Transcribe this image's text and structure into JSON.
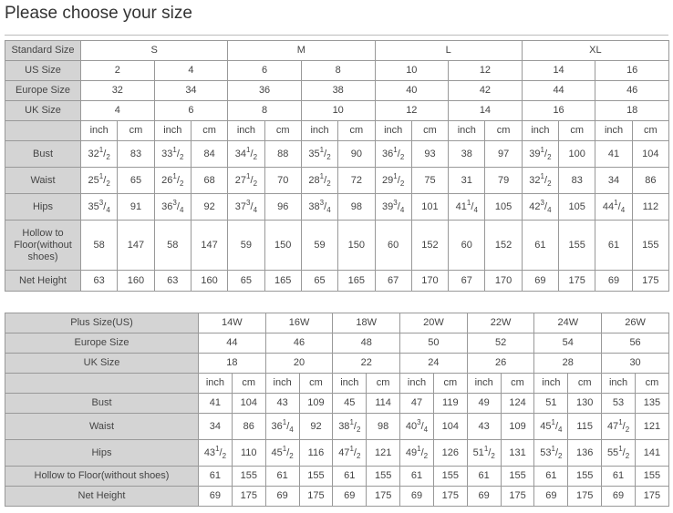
{
  "page_title": "Please choose your size",
  "colors": {
    "label_bg": "#d4d4d4",
    "border": "#999999"
  },
  "standard_table": {
    "header_rows": [
      {
        "label": "Standard Size",
        "values": [
          "S",
          "M",
          "L",
          "XL"
        ]
      },
      {
        "label": "US Size",
        "values": [
          "2",
          "4",
          "6",
          "8",
          "10",
          "12",
          "14",
          "16"
        ]
      },
      {
        "label": "Europe Size",
        "values": [
          "32",
          "34",
          "36",
          "38",
          "40",
          "42",
          "44",
          "46"
        ]
      },
      {
        "label": "UK Size",
        "values": [
          "4",
          "6",
          "8",
          "10",
          "12",
          "14",
          "16",
          "18"
        ]
      }
    ],
    "unit_labels": [
      "inch",
      "cm"
    ],
    "measure_rows": [
      {
        "label": "Bust",
        "values": [
          "32 1/2",
          "83",
          "33 1/2",
          "84",
          "34 1/2",
          "88",
          "35 1/2",
          "90",
          "36 1/2",
          "93",
          "38",
          "97",
          "39 1/2",
          "100",
          "41",
          "104"
        ]
      },
      {
        "label": "Waist",
        "values": [
          "25 1/2",
          "65",
          "26 1/2",
          "68",
          "27 1/2",
          "70",
          "28 1/2",
          "72",
          "29 1/2",
          "75",
          "31",
          "79",
          "32 1/2",
          "83",
          "34",
          "86"
        ]
      },
      {
        "label": "Hips",
        "values": [
          "35 3/4",
          "91",
          "36 3/4",
          "92",
          "37 3/4",
          "96",
          "38 3/4",
          "98",
          "39 3/4",
          "101",
          "41 1/4",
          "105",
          "42 3/4",
          "105",
          "44 1/4",
          "112"
        ]
      },
      {
        "label": "Hollow to Floor(without shoes)",
        "values": [
          "58",
          "147",
          "58",
          "147",
          "59",
          "150",
          "59",
          "150",
          "60",
          "152",
          "60",
          "152",
          "61",
          "155",
          "61",
          "155"
        ]
      },
      {
        "label": "Net Height",
        "values": [
          "63",
          "160",
          "63",
          "160",
          "65",
          "165",
          "65",
          "165",
          "67",
          "170",
          "67",
          "170",
          "69",
          "175",
          "69",
          "175"
        ]
      }
    ]
  },
  "plus_table": {
    "header_rows": [
      {
        "label": "Plus Size(US)",
        "values": [
          "14W",
          "16W",
          "18W",
          "20W",
          "22W",
          "24W",
          "26W"
        ]
      },
      {
        "label": "Europe Size",
        "values": [
          "44",
          "46",
          "48",
          "50",
          "52",
          "54",
          "56"
        ]
      },
      {
        "label": "UK Size",
        "values": [
          "18",
          "20",
          "22",
          "24",
          "26",
          "28",
          "30"
        ]
      }
    ],
    "unit_labels": [
      "inch",
      "cm"
    ],
    "measure_rows": [
      {
        "label": "Bust",
        "values": [
          "41",
          "104",
          "43",
          "109",
          "45",
          "114",
          "47",
          "119",
          "49",
          "124",
          "51",
          "130",
          "53",
          "135"
        ]
      },
      {
        "label": "Waist",
        "values": [
          "34",
          "86",
          "36 1/4",
          "92",
          "38 1/2",
          "98",
          "40 3/4",
          "104",
          "43",
          "109",
          "45 1/4",
          "115",
          "47 1/2",
          "121"
        ]
      },
      {
        "label": "Hips",
        "values": [
          "43 1/2",
          "110",
          "45 1/2",
          "116",
          "47 1/2",
          "121",
          "49 1/2",
          "126",
          "51 1/2",
          "131",
          "53 1/2",
          "136",
          "55 1/2",
          "141"
        ]
      },
      {
        "label": "Hollow to Floor(without shoes)",
        "values": [
          "61",
          "155",
          "61",
          "155",
          "61",
          "155",
          "61",
          "155",
          "61",
          "155",
          "61",
          "155",
          "61",
          "155"
        ]
      },
      {
        "label": "Net Height",
        "values": [
          "69",
          "175",
          "69",
          "175",
          "69",
          "175",
          "69",
          "175",
          "69",
          "175",
          "69",
          "175",
          "69",
          "175"
        ]
      }
    ]
  }
}
